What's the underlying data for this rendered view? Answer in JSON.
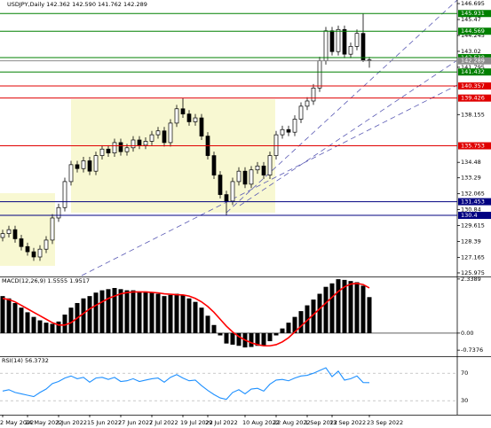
{
  "chart_data": {
    "type": "candlestick",
    "title": "USDJPY,Daily 142.362 142.590 141.762 142.289",
    "categories": [
      "2 May 2022",
      null,
      null,
      null,
      "24 May 2022",
      null,
      null,
      null,
      null,
      "3 Jun 2022",
      null,
      null,
      null,
      null,
      "15 Jun 2022",
      null,
      null,
      null,
      null,
      "27 Jun 2022",
      null,
      null,
      null,
      null,
      "7 Jul 2022",
      null,
      null,
      null,
      null,
      "19 Jul 2022",
      null,
      null,
      null,
      "29 Jul 2022",
      null,
      null,
      null,
      null,
      null,
      "10 Aug 2022",
      null,
      null,
      null,
      null,
      "22 Aug 2022",
      null,
      null,
      null,
      null,
      "1 Sep 2022",
      null,
      null,
      null,
      "13 Sep 2022",
      null,
      null,
      null,
      null,
      null,
      "23 Sep 2022"
    ],
    "open": [
      128.7,
      129.0,
      129.3,
      128.6,
      128.0,
      127.6,
      127.2,
      127.8,
      128.5,
      130.2,
      131.0,
      133.0,
      134.3,
      134.0,
      134.6,
      133.8,
      135.0,
      135.5,
      135.2,
      136.0,
      135.3,
      135.6,
      136.2,
      135.8,
      136.1,
      136.6,
      136.9,
      136.0,
      137.5,
      138.6,
      138.2,
      137.6,
      137.9,
      136.5,
      135.0,
      133.5,
      132.0,
      131.5,
      133.0,
      133.8,
      132.8,
      133.9,
      134.2,
      133.5,
      135.0,
      136.6,
      137.0,
      136.8,
      137.8,
      138.8,
      139.2,
      140.2,
      142.3,
      144.6,
      143.0,
      144.7,
      142.8,
      143.4,
      144.4,
      142.362
    ],
    "high": [
      129.3,
      129.6,
      129.6,
      128.9,
      128.3,
      127.9,
      128.1,
      128.8,
      130.5,
      131.3,
      133.3,
      134.6,
      134.6,
      134.9,
      134.9,
      135.3,
      135.8,
      135.8,
      136.3,
      136.3,
      135.9,
      136.5,
      136.5,
      136.4,
      136.9,
      137.2,
      137.2,
      137.8,
      138.9,
      139.4,
      138.5,
      138.2,
      138.2,
      136.8,
      135.3,
      133.8,
      132.3,
      133.3,
      134.1,
      134.1,
      134.2,
      134.5,
      134.5,
      135.3,
      136.9,
      137.3,
      137.3,
      138.1,
      139.1,
      139.5,
      140.5,
      142.6,
      144.9,
      144.9,
      145.0,
      145.0,
      143.7,
      144.7,
      145.93,
      142.59
    ],
    "low": [
      128.4,
      128.7,
      128.3,
      127.7,
      127.3,
      126.9,
      126.9,
      127.5,
      128.2,
      129.9,
      130.7,
      132.7,
      133.7,
      133.7,
      133.5,
      133.5,
      134.7,
      134.9,
      134.9,
      135.0,
      135.0,
      135.3,
      135.5,
      135.5,
      135.8,
      136.3,
      135.7,
      135.7,
      137.2,
      137.9,
      137.3,
      137.3,
      136.2,
      134.7,
      133.2,
      131.7,
      130.4,
      131.2,
      132.7,
      132.5,
      132.5,
      133.6,
      133.2,
      133.2,
      134.7,
      136.3,
      136.5,
      136.5,
      137.5,
      138.5,
      138.9,
      139.9,
      142.0,
      142.7,
      142.7,
      142.5,
      142.5,
      143.1,
      142.2,
      141.762
    ],
    "close": [
      129.0,
      129.3,
      128.6,
      128.0,
      127.6,
      127.2,
      127.8,
      128.5,
      130.2,
      131.0,
      133.0,
      134.3,
      134.0,
      134.6,
      133.8,
      135.0,
      135.5,
      135.2,
      136.0,
      135.3,
      135.6,
      136.2,
      135.8,
      136.1,
      136.6,
      136.9,
      136.0,
      137.5,
      138.6,
      138.2,
      137.6,
      137.9,
      136.5,
      135.0,
      133.5,
      132.0,
      131.5,
      133.0,
      133.8,
      132.8,
      133.9,
      134.2,
      133.5,
      135.0,
      136.6,
      137.0,
      136.8,
      137.8,
      138.8,
      139.2,
      140.2,
      142.3,
      144.6,
      143.0,
      144.7,
      142.8,
      143.4,
      144.4,
      142.362,
      142.289
    ],
    "ylim": [
      125.7,
      146.97
    ],
    "yticks": [
      146.695,
      145.47,
      144.245,
      143.02,
      141.795,
      138.155,
      134.48,
      133.29,
      132.065,
      130.84,
      129.615,
      128.39,
      127.165,
      125.975
    ],
    "levels": [
      {
        "value": 145.931,
        "color": "#008000"
      },
      {
        "value": 144.569,
        "color": "#008000"
      },
      {
        "value": 142.538,
        "color": "#008000"
      },
      {
        "value": 142.289,
        "color": "#8c8c8c"
      },
      {
        "value": 141.432,
        "color": "#008000"
      },
      {
        "value": 140.357,
        "color": "#e00000"
      },
      {
        "value": 139.426,
        "color": "#e00000"
      },
      {
        "value": 135.753,
        "color": "#e00000"
      },
      {
        "value": 131.453,
        "color": "#000080"
      },
      {
        "value": 130.4,
        "color": "#000080"
      }
    ],
    "macd": {
      "title": "MACD(12,26,9) 1.5555 1.9517",
      "ylim": [
        -1.0,
        2.41
      ],
      "yticks": [
        2.3389,
        {
          "value": 0,
          "label": "0.00"
        },
        -0.7376
      ],
      "histogram": {
        "color": "#000000",
        "values": [
          1.6,
          1.5,
          1.3,
          1.1,
          0.9,
          0.7,
          0.55,
          0.45,
          0.4,
          0.5,
          0.8,
          1.1,
          1.3,
          1.5,
          1.6,
          1.75,
          1.85,
          1.9,
          1.95,
          1.9,
          1.85,
          1.85,
          1.8,
          1.8,
          1.75,
          1.7,
          1.6,
          1.65,
          1.7,
          1.65,
          1.5,
          1.35,
          1.1,
          0.75,
          0.35,
          -0.1,
          -0.45,
          -0.5,
          -0.55,
          -0.62,
          -0.6,
          -0.55,
          -0.55,
          -0.35,
          -0.1,
          0.2,
          0.45,
          0.7,
          0.95,
          1.2,
          1.45,
          1.7,
          2.0,
          2.15,
          2.33,
          2.3,
          2.25,
          2.2,
          2.05,
          1.5555
        ]
      },
      "signal": {
        "color": "#ff0000",
        "values": [
          1.5,
          1.45,
          1.35,
          1.2,
          1.05,
          0.9,
          0.75,
          0.6,
          0.45,
          0.35,
          0.35,
          0.45,
          0.65,
          0.85,
          1.05,
          1.2,
          1.35,
          1.5,
          1.6,
          1.7,
          1.75,
          1.78,
          1.78,
          1.78,
          1.76,
          1.74,
          1.7,
          1.68,
          1.66,
          1.65,
          1.6,
          1.5,
          1.35,
          1.15,
          0.9,
          0.6,
          0.3,
          0.05,
          -0.15,
          -0.3,
          -0.42,
          -0.5,
          -0.55,
          -0.55,
          -0.5,
          -0.38,
          -0.2,
          0.05,
          0.3,
          0.55,
          0.8,
          1.05,
          1.3,
          1.55,
          1.8,
          2.0,
          2.12,
          2.15,
          2.1,
          1.9517
        ]
      }
    },
    "rsi": {
      "title": "RSI(14) 56.3732",
      "ylim": [
        9.6,
        93.5
      ],
      "yticks": [
        70,
        30
      ],
      "color": "#1e90ff",
      "values": [
        44,
        46,
        42,
        40,
        38,
        36,
        42,
        47,
        55,
        58,
        63,
        66,
        62,
        64,
        57,
        63,
        64,
        61,
        64,
        58,
        59,
        62,
        58,
        60,
        62,
        63,
        57,
        64,
        68,
        63,
        59,
        60,
        52,
        45,
        39,
        34,
        32,
        42,
        46,
        40,
        47,
        48,
        44,
        54,
        60,
        61,
        59,
        63,
        66,
        67,
        70,
        74,
        78,
        65,
        73,
        60,
        62,
        66,
        56.5,
        56.3732
      ]
    }
  }
}
